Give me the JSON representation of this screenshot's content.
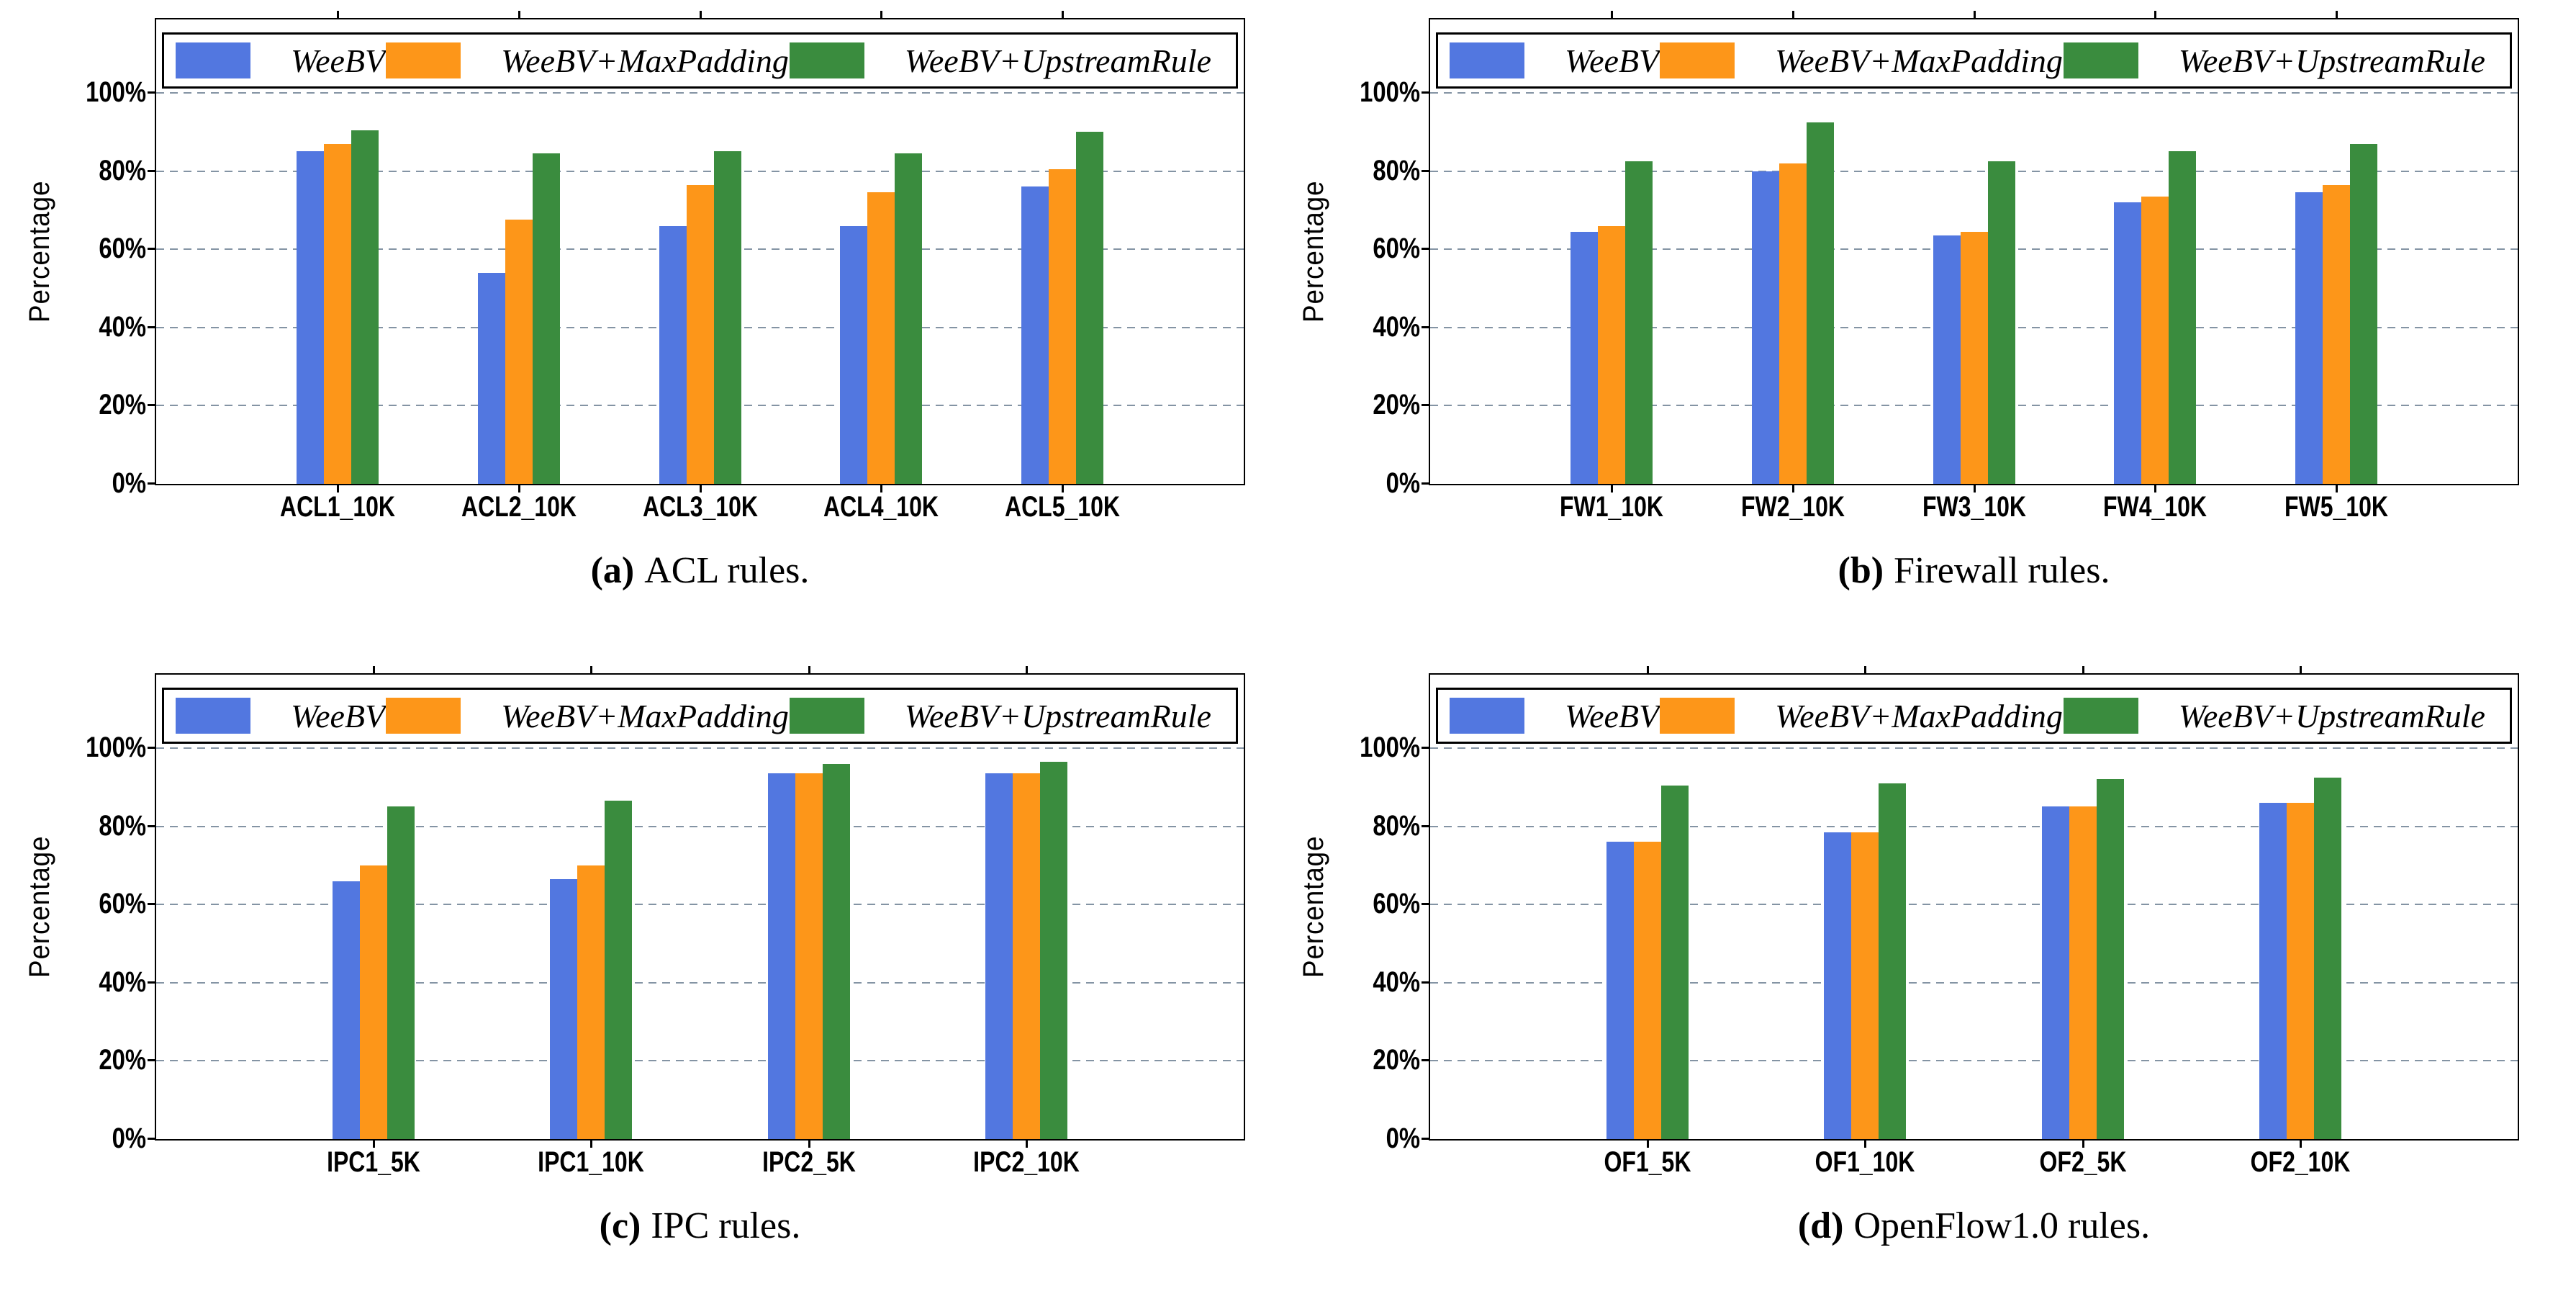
{
  "figure": {
    "ylabel": "Percentage",
    "ytick_labels": [
      "0%",
      "20%",
      "40%",
      "60%",
      "80%",
      "100%"
    ],
    "legend_labels": [
      "WeeBV",
      "WeeBV+MaxPadding",
      "WeeBV+UpstreamRule"
    ],
    "series_colors": [
      "#5277e0",
      "#fd9619",
      "#3a8c3e"
    ],
    "grid_color": "#8494a4"
  },
  "chart_data": [
    {
      "id": "a",
      "type": "bar",
      "caption_tag": "(a)",
      "caption_text": "ACL rules.",
      "ylabel": "Percentage",
      "ylim": [
        0,
        100
      ],
      "yticks": [
        0,
        20,
        40,
        60,
        80,
        100
      ],
      "grid": true,
      "legend_position": "top",
      "categories": [
        "ACL1_10K",
        "ACL2_10K",
        "ACL3_10K",
        "ACL4_10K",
        "ACL5_10K"
      ],
      "series": [
        {
          "name": "WeeBV",
          "color": "#5277e0",
          "values": [
            85,
            54,
            66,
            66,
            76
          ]
        },
        {
          "name": "WeeBV+MaxPadding",
          "color": "#fd9619",
          "values": [
            87,
            67.5,
            76.5,
            74.5,
            80.5
          ]
        },
        {
          "name": "WeeBV+UpstreamRule",
          "color": "#3a8c3e",
          "values": [
            90.5,
            84.5,
            85,
            84.5,
            90
          ]
        }
      ]
    },
    {
      "id": "b",
      "type": "bar",
      "caption_tag": "(b)",
      "caption_text": "Firewall rules.",
      "ylabel": "Percentage",
      "ylim": [
        0,
        100
      ],
      "yticks": [
        0,
        20,
        40,
        60,
        80,
        100
      ],
      "grid": true,
      "legend_position": "top",
      "categories": [
        "FW1_10K",
        "FW2_10K",
        "FW3_10K",
        "FW4_10K",
        "FW5_10K"
      ],
      "series": [
        {
          "name": "WeeBV",
          "color": "#5277e0",
          "values": [
            64.5,
            80,
            63.5,
            72,
            74.5
          ]
        },
        {
          "name": "WeeBV+MaxPadding",
          "color": "#fd9619",
          "values": [
            66,
            82,
            64.5,
            73.5,
            76.5
          ]
        },
        {
          "name": "WeeBV+UpstreamRule",
          "color": "#3a8c3e",
          "values": [
            82.5,
            92.5,
            82.5,
            85,
            87
          ]
        }
      ]
    },
    {
      "id": "c",
      "type": "bar",
      "caption_tag": "(c)",
      "caption_text": "IPC rules.",
      "ylabel": "Percentage",
      "ylim": [
        0,
        100
      ],
      "yticks": [
        0,
        20,
        40,
        60,
        80,
        100
      ],
      "grid": true,
      "legend_position": "top",
      "categories": [
        "IPC1_5K",
        "IPC1_10K",
        "IPC2_5K",
        "IPC2_10K"
      ],
      "series": [
        {
          "name": "WeeBV",
          "color": "#5277e0",
          "values": [
            66,
            66.5,
            93.5,
            93.5
          ]
        },
        {
          "name": "WeeBV+MaxPadding",
          "color": "#fd9619",
          "values": [
            70,
            70,
            93.5,
            93.5
          ]
        },
        {
          "name": "WeeBV+UpstreamRule",
          "color": "#3a8c3e",
          "values": [
            85,
            86.5,
            96,
            96.5
          ]
        }
      ]
    },
    {
      "id": "d",
      "type": "bar",
      "caption_tag": "(d)",
      "caption_text": "OpenFlow1.0 rules.",
      "ylabel": "Percentage",
      "ylim": [
        0,
        100
      ],
      "yticks": [
        0,
        20,
        40,
        60,
        80,
        100
      ],
      "grid": true,
      "legend_position": "top",
      "categories": [
        "OF1_5K",
        "OF1_10K",
        "OF2_5K",
        "OF2_10K"
      ],
      "series": [
        {
          "name": "WeeBV",
          "color": "#5277e0",
          "values": [
            76,
            78.5,
            85,
            86
          ]
        },
        {
          "name": "WeeBV+MaxPadding",
          "color": "#fd9619",
          "values": [
            76,
            78.5,
            85,
            86
          ]
        },
        {
          "name": "WeeBV+UpstreamRule",
          "color": "#3a8c3e",
          "values": [
            90.5,
            91,
            92,
            92.5
          ]
        }
      ]
    }
  ]
}
